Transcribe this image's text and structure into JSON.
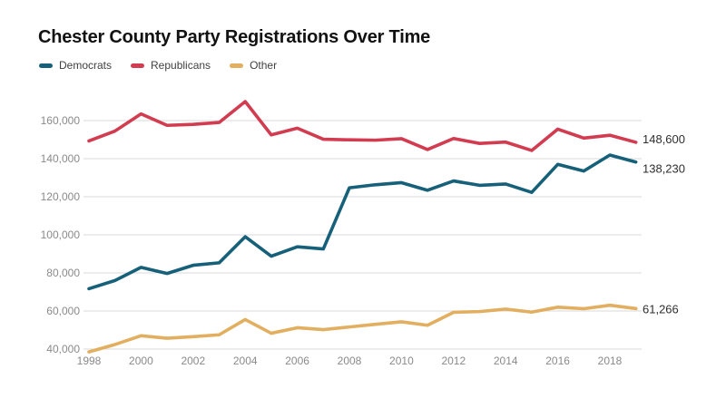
{
  "header": {
    "title": "Chester County Party Registrations Over Time"
  },
  "chart_data": {
    "type": "line",
    "title": "Chester County Party Registrations Over Time",
    "xlabel": "",
    "ylabel": "",
    "grid": "horizontal",
    "legend_position": "top-left",
    "x": [
      1998,
      1999,
      2000,
      2001,
      2002,
      2003,
      2004,
      2005,
      2006,
      2007,
      2008,
      2009,
      2010,
      2011,
      2012,
      2013,
      2014,
      2015,
      2016,
      2017,
      2018,
      2019
    ],
    "x_tick_years": [
      1998,
      2000,
      2002,
      2004,
      2006,
      2008,
      2010,
      2012,
      2014,
      2016,
      2018
    ],
    "y_ticks": [
      160000,
      140000,
      120000,
      100000,
      80000,
      60000,
      40000
    ],
    "ylim": [
      36000,
      172000
    ],
    "series": [
      {
        "name": "Democrats",
        "color": "#166079",
        "end_label": "138,230",
        "values": [
          71700,
          76000,
          82900,
          79700,
          84000,
          85300,
          99000,
          88800,
          93700,
          92600,
          124700,
          126300,
          127400,
          123400,
          128300,
          126000,
          126700,
          122300,
          137000,
          133500,
          141900,
          138230
        ]
      },
      {
        "name": "Republicans",
        "color": "#d23c50",
        "end_label": "148,600",
        "values": [
          149300,
          154500,
          163500,
          157500,
          158000,
          159000,
          170000,
          152500,
          156000,
          150200,
          149900,
          149700,
          150500,
          144800,
          150600,
          148000,
          148700,
          144300,
          155500,
          150800,
          152300,
          148600
        ]
      },
      {
        "name": "Other",
        "color": "#e2af61",
        "end_label": "61,266",
        "values": [
          38500,
          42400,
          47000,
          45700,
          46500,
          47500,
          55500,
          48300,
          51200,
          50200,
          51600,
          53000,
          54300,
          52500,
          59300,
          59700,
          61000,
          59400,
          62000,
          61200,
          63000,
          61266
        ]
      }
    ]
  }
}
